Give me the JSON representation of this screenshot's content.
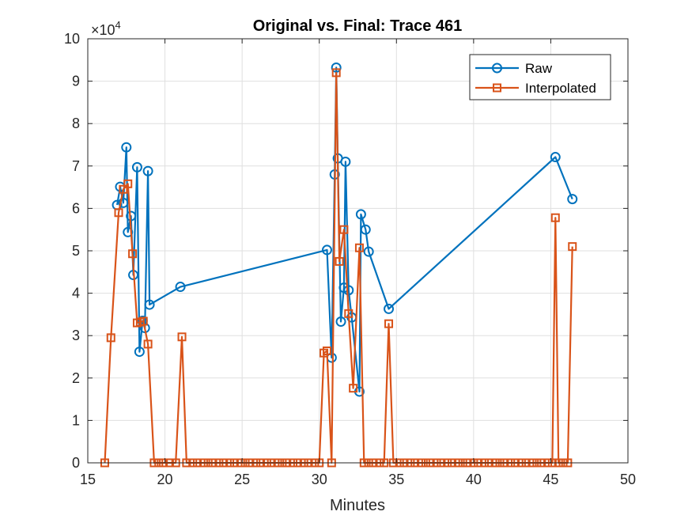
{
  "chart_data": {
    "type": "line",
    "title": "Original vs. Final: Trace 461",
    "xlabel": "Minutes",
    "ylabel": "",
    "xlim": [
      15,
      50
    ],
    "ylim": [
      0,
      100000
    ],
    "x_ticks": [
      "15",
      "20",
      "25",
      "30",
      "35",
      "40",
      "45",
      "50"
    ],
    "y_ticks": [
      "0",
      "1",
      "2",
      "3",
      "4",
      "5",
      "6",
      "7",
      "8",
      "9",
      "10"
    ],
    "y_exponent_label": "×10",
    "y_exponent_power": "4",
    "grid": true,
    "legend_position": "top-right",
    "series": [
      {
        "name": "Raw",
        "color": "#0072BD",
        "marker": "circle",
        "x": [
          16.9,
          17.1,
          17.3,
          17.5,
          17.6,
          17.8,
          17.95,
          18.2,
          18.35,
          18.55,
          18.7,
          18.9,
          19.0,
          21.0,
          30.5,
          30.8,
          31.0,
          31.1,
          31.2,
          31.4,
          31.6,
          31.7,
          31.9,
          32.1,
          32.6,
          32.7,
          33.0,
          33.2,
          34.5,
          45.3,
          46.4
        ],
        "y": [
          60800,
          65100,
          61300,
          74400,
          54400,
          58200,
          44300,
          69700,
          26200,
          33500,
          31800,
          68800,
          37300,
          41500,
          50200,
          24800,
          68000,
          93200,
          71800,
          33300,
          41300,
          71000,
          40700,
          34300,
          16800,
          58600,
          55000,
          49800,
          36300,
          72100,
          62200
        ]
      },
      {
        "name": "Interpolated",
        "color": "#D95319",
        "marker": "square",
        "x": [
          16.1,
          16.5,
          17.0,
          17.3,
          17.6,
          17.9,
          18.2,
          18.4,
          18.6,
          18.9,
          19.3,
          19.6,
          19.9,
          20.3,
          20.7,
          21.1,
          21.4,
          21.8,
          22.1,
          22.5,
          22.8,
          23.1,
          23.5,
          23.8,
          24.2,
          24.5,
          24.9,
          25.2,
          25.5,
          25.9,
          26.2,
          26.6,
          26.9,
          27.3,
          27.6,
          27.9,
          28.3,
          28.6,
          29.0,
          29.3,
          29.7,
          30.0,
          30.3,
          30.5,
          30.8,
          31.1,
          31.3,
          31.6,
          31.9,
          32.2,
          32.6,
          32.9,
          33.2,
          33.5,
          33.9,
          34.2,
          34.5,
          34.8,
          35.2,
          35.5,
          35.9,
          36.2,
          36.6,
          36.9,
          37.2,
          37.6,
          37.9,
          38.3,
          38.6,
          39.0,
          39.3,
          39.6,
          40.0,
          40.3,
          40.7,
          41.0,
          41.4,
          41.7,
          42.0,
          42.4,
          42.7,
          43.1,
          43.4,
          43.8,
          44.1,
          44.4,
          44.8,
          45.1,
          45.3,
          45.5,
          45.8,
          46.1,
          46.4
        ],
        "y": [
          0,
          29500,
          59000,
          64500,
          65800,
          49300,
          33000,
          33200,
          33400,
          28000,
          0,
          0,
          0,
          0,
          0,
          29700,
          0,
          0,
          0,
          0,
          0,
          0,
          0,
          0,
          0,
          0,
          0,
          0,
          0,
          0,
          0,
          0,
          0,
          0,
          0,
          0,
          0,
          0,
          0,
          0,
          0,
          0,
          25900,
          26400,
          0,
          92000,
          47500,
          55000,
          35200,
          17600,
          50700,
          0,
          0,
          0,
          0,
          0,
          32800,
          0,
          0,
          0,
          0,
          0,
          0,
          0,
          0,
          0,
          0,
          0,
          0,
          0,
          0,
          0,
          0,
          0,
          0,
          0,
          0,
          0,
          0,
          0,
          0,
          0,
          0,
          0,
          0,
          0,
          0,
          0,
          57800,
          0,
          0,
          0,
          51000
        ]
      }
    ]
  }
}
